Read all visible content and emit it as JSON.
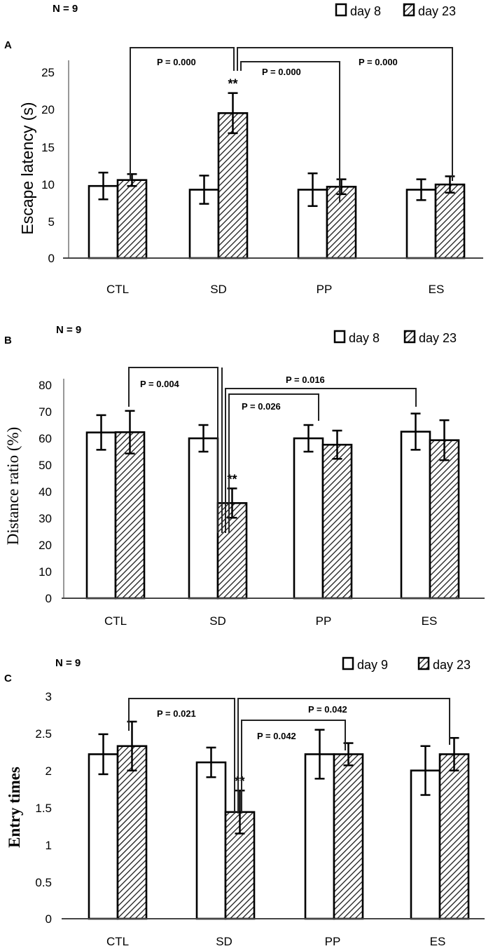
{
  "chart_data": [
    {
      "panel": "A",
      "type": "bar",
      "n_label": "N = 9",
      "ylabel": "Escape latency (s)",
      "ylim": [
        0,
        25
      ],
      "ytick_step": 5,
      "yticks": [
        "0",
        "5",
        "10",
        "15",
        "20",
        "25"
      ],
      "categories": [
        "CTL",
        "SD",
        "PP",
        "ES"
      ],
      "series": [
        {
          "name": "day 8",
          "pattern": "white",
          "values": [
            9.7,
            9.2,
            9.2,
            9.2
          ],
          "errors": [
            1.8,
            1.9,
            2.2,
            1.4
          ]
        },
        {
          "name": "day 23",
          "pattern": "hatched",
          "values": [
            10.5,
            19.5,
            9.6,
            9.9
          ],
          "errors": [
            0.8,
            2.7,
            1.0,
            1.1
          ]
        }
      ],
      "significance": {
        "category": "SD",
        "series": "day 23",
        "mark": "**"
      },
      "comparisons": [
        {
          "from": "SD",
          "to": "CTL",
          "label": "P = 0.000"
        },
        {
          "from": "SD",
          "to": "PP",
          "label": "P = 0.000"
        },
        {
          "from": "SD",
          "to": "ES",
          "label": "P = 0.000"
        }
      ],
      "legend": "top-right",
      "grid": false
    },
    {
      "panel": "B",
      "type": "bar",
      "n_label": "N = 9",
      "ylabel": "Distance ratio  (%)",
      "ylim": [
        0,
        80
      ],
      "ytick_step": 10,
      "yticks": [
        "0",
        "10",
        "20",
        "30",
        "40",
        "50",
        "60",
        "70",
        "80"
      ],
      "categories": [
        "CTL",
        "SD",
        "PP",
        "ES"
      ],
      "series": [
        {
          "name": "day 8",
          "pattern": "white",
          "values": [
            62.2,
            60.0,
            60.0,
            62.5
          ],
          "errors": [
            6.5,
            5.0,
            5.0,
            6.8
          ]
        },
        {
          "name": "day 23",
          "pattern": "hatched",
          "values": [
            62.3,
            35.7,
            57.6,
            59.3
          ],
          "errors": [
            8.0,
            5.5,
            5.3,
            7.5
          ]
        }
      ],
      "significance": {
        "category": "SD",
        "series": "day 23",
        "mark": "**"
      },
      "comparisons": [
        {
          "from": "SD",
          "to": "CTL",
          "label": "P = 0.004"
        },
        {
          "from": "SD",
          "to": "PP",
          "label": "P = 0.026"
        },
        {
          "from": "SD",
          "to": "ES",
          "label": "P = 0.016"
        }
      ],
      "legend": "top-right",
      "grid": false
    },
    {
      "panel": "C",
      "type": "bar",
      "n_label": "N = 9",
      "ylabel": "Entry times",
      "ylim": [
        0,
        3
      ],
      "ytick_step": 0.5,
      "yticks": [
        "0",
        "0.5",
        "1",
        "1.5",
        "2",
        "2.5",
        "3"
      ],
      "categories": [
        "CTL",
        "SD",
        "PP",
        "ES"
      ],
      "series": [
        {
          "name": "day 9",
          "pattern": "white",
          "values": [
            2.22,
            2.11,
            2.22,
            2.0
          ],
          "errors": [
            0.27,
            0.2,
            0.33,
            0.33
          ]
        },
        {
          "name": "day 23",
          "pattern": "hatched",
          "values": [
            2.33,
            1.44,
            2.22,
            2.22
          ],
          "errors": [
            0.33,
            0.29,
            0.15,
            0.22
          ]
        }
      ],
      "significance": {
        "category": "SD",
        "series": "day 23",
        "mark": "**"
      },
      "comparisons": [
        {
          "from": "SD",
          "to": "CTL",
          "label": "P = 0.021"
        },
        {
          "from": "SD",
          "to": "PP",
          "label": "P = 0.042"
        },
        {
          "from": "SD",
          "to": "ES",
          "label": "P = 0.042"
        }
      ],
      "legend": "top-right",
      "grid": false
    }
  ]
}
